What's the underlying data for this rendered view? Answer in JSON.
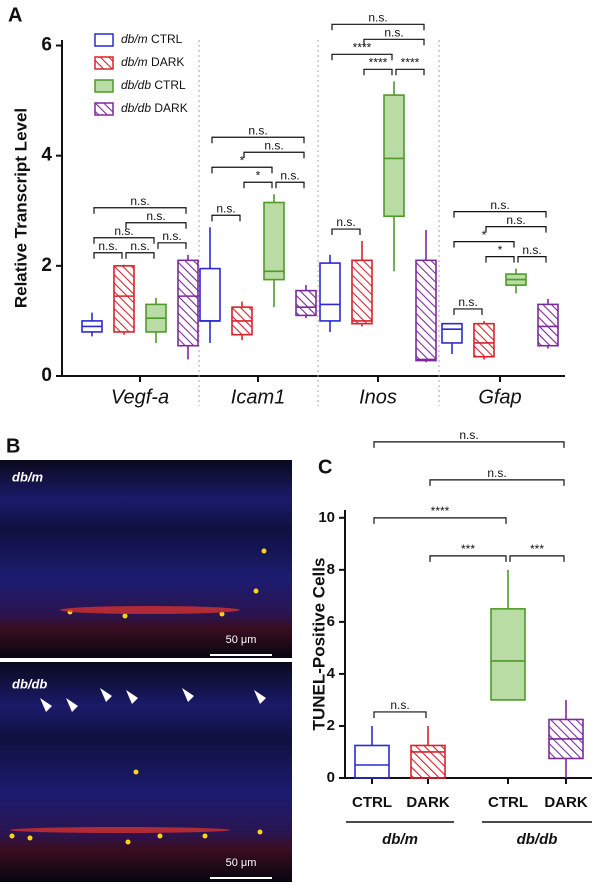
{
  "chart_data": [
    {
      "type": "box",
      "panel": "A",
      "y_label": "Relative Transcript Level",
      "categories": [
        "Vegf-a",
        "Icam1",
        "Inos",
        "Gfap"
      ],
      "ylim": [
        0,
        6.1
      ],
      "yticks": [
        0,
        2,
        4,
        6
      ],
      "series": [
        {
          "name": "db/m CTRL",
          "color": "#2b2bd1",
          "fill": "none",
          "values": [
            {
              "min": 0.72,
              "q1": 0.8,
              "median": 0.9,
              "q3": 1.0,
              "max": 1.15
            },
            {
              "min": 0.6,
              "q1": 1.0,
              "median": 1.0,
              "q3": 1.95,
              "max": 2.7
            },
            {
              "min": 0.8,
              "q1": 1.0,
              "median": 1.3,
              "q3": 2.05,
              "max": 2.2
            },
            {
              "min": 0.4,
              "q1": 0.6,
              "median": 0.85,
              "q3": 0.95,
              "max": 0.95
            }
          ]
        },
        {
          "name": "db/m DARK",
          "color": "#d9232e",
          "fill": "hatch",
          "values": [
            {
              "min": 0.75,
              "q1": 0.8,
              "median": 1.45,
              "q3": 2.0,
              "max": 2.02
            },
            {
              "min": 0.65,
              "q1": 0.75,
              "median": 1.0,
              "q3": 1.25,
              "max": 1.35
            },
            {
              "min": 0.9,
              "q1": 0.95,
              "median": 1.0,
              "q3": 2.1,
              "max": 2.45
            },
            {
              "min": 0.3,
              "q1": 0.35,
              "median": 0.6,
              "q3": 0.95,
              "max": 1.0
            }
          ]
        },
        {
          "name": "db/db CTRL",
          "color": "#4e9a2a",
          "fill": "#b9dca4",
          "values": [
            {
              "min": 0.6,
              "q1": 0.8,
              "median": 1.05,
              "q3": 1.3,
              "max": 1.42
            },
            {
              "min": 1.25,
              "q1": 1.75,
              "median": 1.9,
              "q3": 3.15,
              "max": 3.3
            },
            {
              "min": 1.9,
              "q1": 2.9,
              "median": 3.95,
              "q3": 5.1,
              "max": 5.35
            },
            {
              "min": 1.5,
              "q1": 1.65,
              "median": 1.75,
              "q3": 1.85,
              "max": 1.95
            }
          ]
        },
        {
          "name": "db/db DARK",
          "color": "#7b2a9c",
          "fill": "hatch",
          "values": [
            {
              "min": 0.3,
              "q1": 0.55,
              "median": 1.45,
              "q3": 2.1,
              "max": 2.2
            },
            {
              "min": 1.05,
              "q1": 1.1,
              "median": 1.25,
              "q3": 1.55,
              "max": 1.65
            },
            {
              "min": 0.25,
              "q1": 0.28,
              "median": 0.3,
              "q3": 2.1,
              "max": 2.65
            },
            {
              "min": 0.5,
              "q1": 0.55,
              "median": 0.9,
              "q3": 1.3,
              "max": 1.4
            }
          ]
        }
      ],
      "annotations": [
        {
          "category": 0,
          "from": 0,
          "to": 1,
          "label": "n.s."
        },
        {
          "category": 0,
          "from": 1,
          "to": 2,
          "label": "n.s."
        },
        {
          "category": 0,
          "from": 2,
          "to": 3,
          "label": "n.s."
        },
        {
          "category": 0,
          "from": 0,
          "to": 2,
          "label": "n.s."
        },
        {
          "category": 0,
          "from": 1,
          "to": 3,
          "label": "n.s."
        },
        {
          "category": 0,
          "from": 0,
          "to": 3,
          "label": "n.s."
        },
        {
          "category": 1,
          "from": 0,
          "to": 1,
          "label": "n.s."
        },
        {
          "category": 1,
          "from": 1,
          "to": 2,
          "label": "*"
        },
        {
          "category": 1,
          "from": 2,
          "to": 3,
          "label": "n.s."
        },
        {
          "category": 1,
          "from": 0,
          "to": 2,
          "label": "*"
        },
        {
          "category": 1,
          "from": 1,
          "to": 3,
          "label": "n.s."
        },
        {
          "category": 1,
          "from": 0,
          "to": 3,
          "label": "n.s."
        },
        {
          "category": 2,
          "from": 0,
          "to": 1,
          "label": "n.s."
        },
        {
          "category": 2,
          "from": 1,
          "to": 2,
          "label": "****"
        },
        {
          "category": 2,
          "from": 2,
          "to": 3,
          "label": "****"
        },
        {
          "category": 2,
          "from": 0,
          "to": 2,
          "label": "****"
        },
        {
          "category": 2,
          "from": 1,
          "to": 3,
          "label": "n.s."
        },
        {
          "category": 2,
          "from": 0,
          "to": 3,
          "label": "n.s."
        },
        {
          "category": 3,
          "from": 0,
          "to": 1,
          "label": "n.s."
        },
        {
          "category": 3,
          "from": 1,
          "to": 2,
          "label": "*"
        },
        {
          "category": 3,
          "from": 2,
          "to": 3,
          "label": "n.s."
        },
        {
          "category": 3,
          "from": 0,
          "to": 2,
          "label": "*"
        },
        {
          "category": 3,
          "from": 1,
          "to": 3,
          "label": "n.s."
        },
        {
          "category": 3,
          "from": 0,
          "to": 3,
          "label": "n.s."
        }
      ]
    },
    {
      "type": "box",
      "panel": "C",
      "y_label": "TUNEL-Positive Cells",
      "categories": [
        "CTRL",
        "DARK",
        "CTRL",
        "DARK"
      ],
      "group_labels": [
        "db/m",
        "db/db"
      ],
      "ylim": [
        0,
        10.3
      ],
      "yticks": [
        0,
        2,
        4,
        6,
        8,
        10
      ],
      "colors": [
        "#2b2bd1",
        "#d9232e",
        "#4e9a2a",
        "#7b2a9c"
      ],
      "fills": [
        "none",
        "hatch",
        "#b9dca4",
        "hatch"
      ],
      "values": [
        {
          "min": 0,
          "q1": 0,
          "median": 0.5,
          "q3": 1.25,
          "max": 2
        },
        {
          "min": 0,
          "q1": 0,
          "median": 1.0,
          "q3": 1.25,
          "max": 2
        },
        {
          "min": 3,
          "q1": 3,
          "median": 4.5,
          "q3": 6.5,
          "max": 8
        },
        {
          "min": 0,
          "q1": 0.75,
          "median": 1.5,
          "q3": 2.25,
          "max": 3
        }
      ],
      "annotations": [
        {
          "from": 0,
          "to": 1,
          "label": "n.s."
        },
        {
          "from": 1,
          "to": 2,
          "label": "***"
        },
        {
          "from": 2,
          "to": 3,
          "label": "***"
        },
        {
          "from": 0,
          "to": 2,
          "label": "****"
        },
        {
          "from": 1,
          "to": 3,
          "label": "n.s."
        },
        {
          "from": 0,
          "to": 3,
          "label": "n.s."
        }
      ]
    }
  ],
  "panel_b": {
    "label": "B",
    "images": [
      {
        "label": "db/m",
        "scale_bar": "50 μm"
      },
      {
        "label": "db/db",
        "scale_bar": "50 μm"
      }
    ]
  }
}
